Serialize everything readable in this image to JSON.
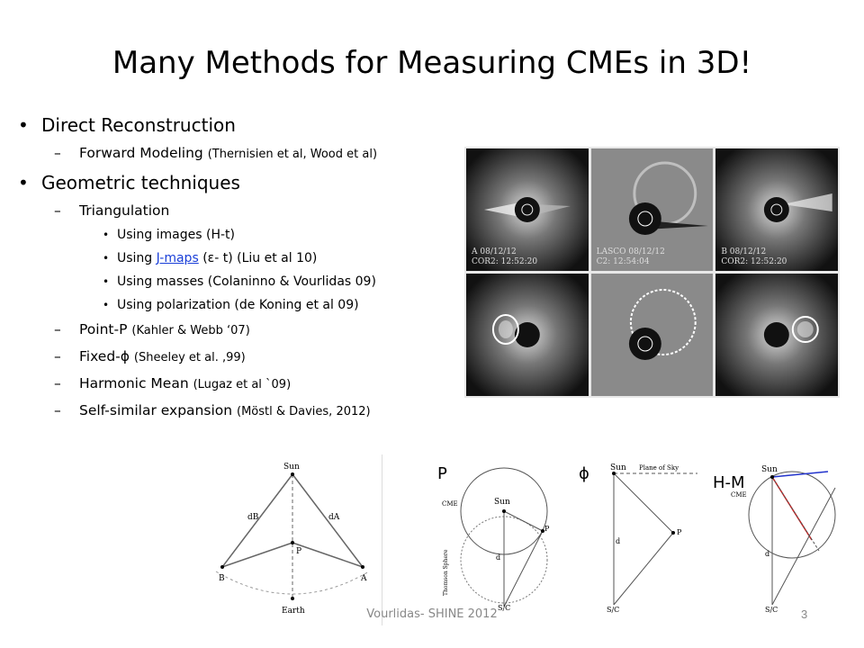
{
  "slide": {
    "title": "Many Methods for Measuring CMEs in 3D!",
    "footer": "Vourlidas- SHINE 2012",
    "page_number": "3"
  },
  "bullets": {
    "direct": "Direct Reconstruction",
    "forward_modeling": "Forward Modeling",
    "forward_modeling_ref": "(Thernisien et al, Wood et al)",
    "geometric": "Geometric techniques",
    "triangulation": "Triangulation",
    "using_images": "Using images (H-t)",
    "using_jmaps_prefix": "Using",
    "jmaps_link": "J-maps",
    "using_jmaps_suffix": "(ε- t) (Liu et al 10)",
    "using_masses": "Using masses (Colaninno & Vourlidas 09)",
    "using_polarization": "Using polarization (de Koning et al 09)",
    "point_p": "Point-P",
    "point_p_ref": "(Kahler & Webb ‘07)",
    "fixed_phi": "Fixed-ϕ",
    "fixed_phi_ref": "(Sheeley et al. ,99)",
    "harmonic_mean": "Harmonic Mean",
    "harmonic_mean_ref": "(Lugaz et al `09)",
    "self_similar": "Self-similar expansion",
    "self_similar_ref": "(Möstl & Davies, 2012)"
  },
  "image_panels": [
    {
      "line1": "A 08/12/12",
      "line2": "COR2: 12:52:20"
    },
    {
      "line1": "LASCO 08/12/12",
      "line2": "C2: 12:54:04"
    },
    {
      "line1": "B 08/12/12",
      "line2": "COR2: 12:52:20"
    }
  ],
  "diagram_labels": {
    "point_p": "P",
    "fixed_phi": "ϕ",
    "harmonic_mean": "H-M",
    "sun": "Sun",
    "earth": "Earth",
    "cme": "CME",
    "sc": "S/C",
    "plane_of_sky": "Plane of Sky",
    "thomson_sphere": "Thomson Sphere",
    "p": "P",
    "a": "A",
    "b": "B",
    "d": "d",
    "dA": "dA",
    "dB": "dB"
  },
  "colors": {
    "link": "#1a3fd8",
    "hm_blue": "#2233cc",
    "hm_red": "#cc2222"
  }
}
